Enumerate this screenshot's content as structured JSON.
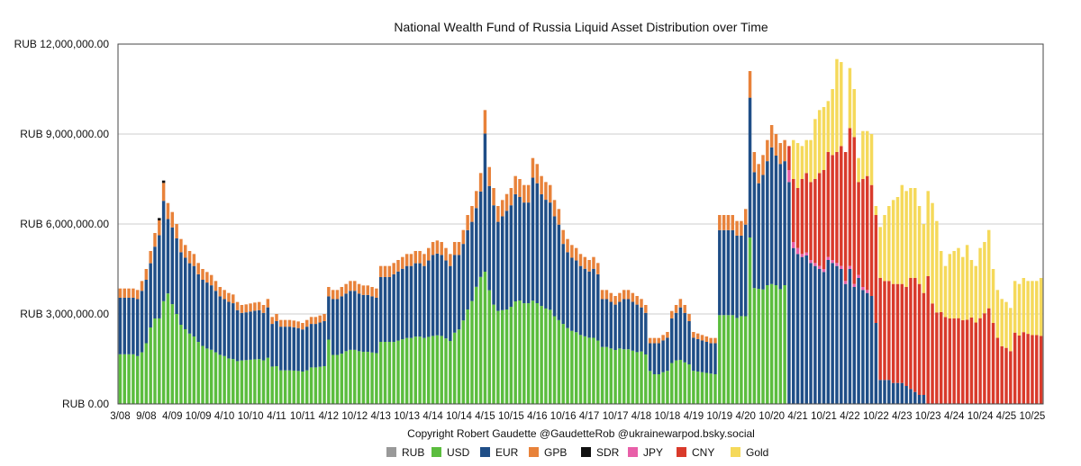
{
  "chart_data": {
    "type": "stacked-bar",
    "title": "National Wealth Fund of Russia Liquid Asset Distribution over Time",
    "credit": "Copyright Robert Gaudette @GaudetteRob @ukrainewarpod.bsky.social",
    "ylim": [
      0,
      12000000
    ],
    "yticks": [
      0,
      3000000,
      6000000,
      9000000,
      12000000
    ],
    "ytick_labels": [
      "RUB 0.00",
      "RUB 3,000,000.00",
      "RUB 6,000,000.00",
      "RUB 9,000,000.00",
      "RUB 12,000,000.00"
    ],
    "grid": true,
    "legend_position": "bottom",
    "x_tick_labels": [
      "3/08",
      "9/08",
      "4/09",
      "10/09",
      "4/10",
      "10/10",
      "4/11",
      "10/11",
      "4/12",
      "10/12",
      "4/13",
      "10/13",
      "4/14",
      "10/14",
      "4/15",
      "10/15",
      "4/16",
      "10/16",
      "4/17",
      "10/17",
      "4/18",
      "10/18",
      "4/19",
      "10/19",
      "4/20",
      "10/20",
      "4/21",
      "10/21",
      "4/22",
      "10/22",
      "4/23",
      "10/23",
      "4/24",
      "10/24",
      "4/25",
      "10/25"
    ],
    "series_meta": [
      {
        "name": "RUB",
        "color": "#999999"
      },
      {
        "name": "USD",
        "color": "#5bbd3e"
      },
      {
        "name": "EUR",
        "color": "#1f4e87"
      },
      {
        "name": "GPB",
        "color": "#e8823a"
      },
      {
        "name": "SDR",
        "color": "#111111"
      },
      {
        "name": "JPY",
        "color": "#e85fa8"
      },
      {
        "name": "CNY",
        "color": "#d93a2b"
      },
      {
        "name": "Gold",
        "color": "#f5d95a"
      }
    ],
    "months": 213,
    "phase1_totals": [
      3850000,
      3850000,
      3850000,
      3850000,
      3800000,
      4100000,
      4500000,
      5100000,
      5700000,
      6200000,
      7450000,
      6700000,
      6400000,
      6000000,
      5500000,
      5300000,
      5100000,
      5000000,
      4700000,
      4500000,
      4400000,
      4300000,
      4100000,
      3900000,
      3800000,
      3700000,
      3650000,
      3400000,
      3300000,
      3320000,
      3350000,
      3380000,
      3400000,
      3300000,
      3500000,
      2900000,
      3000000,
      2800000,
      2800000,
      2800000,
      2780000,
      2750000,
      2700000,
      2800000,
      2900000,
      2900000,
      2950000,
      3000000,
      3900000,
      3800000,
      3800000,
      3900000,
      4000000,
      4100000,
      4100000,
      4000000,
      3950000,
      3950000,
      3900000,
      3850000,
      4600000,
      4600000,
      4600000,
      4700000,
      4800000,
      4900000,
      5000000,
      5000000,
      5100000,
      5100000,
      5000000,
      5200000,
      5400000,
      5450000,
      5400000,
      5200000,
      5000000,
      5400000,
      5400000,
      5800000,
      6300000,
      6600000,
      7100000,
      7700000,
      9800000,
      7900000,
      7200000,
      6600000,
      6800000,
      7000000,
      7200000,
      7600000,
      7500000,
      7300000,
      7300000,
      8200000,
      8000000,
      7600000,
      7400000,
      7300000,
      6800000,
      6500000,
      5800000,
      5500000,
      5300000,
      5200000,
      5000000,
      4900000,
      4800000,
      4900000,
      4700000,
      3800000,
      3800000,
      3700000,
      3600000,
      3700000,
      3800000,
      3800000,
      3700000,
      3600000,
      3500000,
      3300000,
      2200000,
      2200000,
      2200000,
      2300000,
      2400000,
      3100000,
      3300000,
      3500000,
      3300000,
      3000000,
      2400000,
      2350000,
      2300000,
      2250000,
      2200000,
      2200000,
      6300000,
      6300000,
      6300000,
      6300000,
      6100000,
      6100000,
      6500000,
      11100000,
      8400000,
      8000000,
      8300000,
      8800000,
      9300000,
      9000000,
      8700000,
      8800000
    ],
    "usd_frac": [
      0.43,
      0.43,
      0.43,
      0.43,
      0.42,
      0.42,
      0.45,
      0.5,
      0.5,
      0.46,
      0.46,
      0.55,
      0.52,
      0.5,
      0.48,
      0.47,
      0.46,
      0.45,
      0.44,
      0.43,
      0.42,
      0.42,
      0.42,
      0.42,
      0.42,
      0.41,
      0.41,
      0.42,
      0.44,
      0.44,
      0.44,
      0.44,
      0.44,
      0.44,
      0.44,
      0.43,
      0.42,
      0.4,
      0.4,
      0.4,
      0.4,
      0.4,
      0.4,
      0.4,
      0.42,
      0.42,
      0.42,
      0.42,
      0.55,
      0.43,
      0.43,
      0.43,
      0.44,
      0.44,
      0.44,
      0.44,
      0.44,
      0.44,
      0.44,
      0.44,
      0.45,
      0.45,
      0.45,
      0.44,
      0.44,
      0.44,
      0.44,
      0.44,
      0.44,
      0.44,
      0.44,
      0.43,
      0.42,
      0.42,
      0.42,
      0.42,
      0.42,
      0.44,
      0.46,
      0.48,
      0.5,
      0.52,
      0.55,
      0.55,
      0.45,
      0.48,
      0.46,
      0.47,
      0.46,
      0.45,
      0.45,
      0.45,
      0.46,
      0.46,
      0.46,
      0.42,
      0.42,
      0.43,
      0.43,
      0.43,
      0.43,
      0.43,
      0.46,
      0.46,
      0.46,
      0.46,
      0.46,
      0.46,
      0.46,
      0.45,
      0.45,
      0.5,
      0.5,
      0.5,
      0.5,
      0.5,
      0.48,
      0.48,
      0.48,
      0.48,
      0.5,
      0.5,
      0.5,
      0.45,
      0.45,
      0.46,
      0.46,
      0.44,
      0.44,
      0.42,
      0.42,
      0.44,
      0.46,
      0.46,
      0.46,
      0.46,
      0.46,
      0.45,
      0.47,
      0.47,
      0.47,
      0.47,
      0.47,
      0.48,
      0.45,
      0.5,
      0.46,
      0.48,
      0.46,
      0.45,
      0.43,
      0.44,
      0.44,
      0.45
    ],
    "phase2_rows": [
      [
        0,
        0,
        7400000,
        0,
        0,
        400000,
        800000,
        0
      ],
      [
        0,
        0,
        5200000,
        0,
        0,
        200000,
        2100000,
        1300000
      ],
      [
        0,
        0,
        5000000,
        0,
        0,
        200000,
        2000000,
        1500000
      ],
      [
        0,
        0,
        4900000,
        0,
        0,
        100000,
        2500000,
        1100000
      ],
      [
        0,
        0,
        4950000,
        0,
        0,
        100000,
        2650000,
        1100000
      ],
      [
        0,
        0,
        4700000,
        0,
        0,
        100000,
        2600000,
        1400000
      ],
      [
        0,
        0,
        4600000,
        0,
        0,
        100000,
        2800000,
        2000000
      ],
      [
        0,
        0,
        4500000,
        0,
        0,
        100000,
        3100000,
        2100000
      ],
      [
        0,
        0,
        4400000,
        0,
        0,
        100000,
        3300000,
        2100000
      ],
      [
        0,
        0,
        4800000,
        0,
        0,
        100000,
        3500000,
        1700000
      ],
      [
        0,
        0,
        4700000,
        0,
        0,
        100000,
        3500000,
        2200000
      ],
      [
        0,
        0,
        4600000,
        0,
        0,
        100000,
        3700000,
        3100000
      ],
      [
        0,
        0,
        4500000,
        0,
        0,
        100000,
        4000000,
        2800000
      ],
      [
        0,
        0,
        4000000,
        0,
        0,
        100000,
        4300000,
        0
      ],
      [
        0,
        0,
        4500000,
        0,
        0,
        100000,
        4600000,
        2000000
      ],
      [
        0,
        0,
        3900000,
        0,
        0,
        100000,
        4900000,
        1600000
      ],
      [
        0,
        0,
        4200000,
        0,
        0,
        100000,
        3100000,
        800000
      ],
      [
        0,
        0,
        3800000,
        0,
        0,
        100000,
        3600000,
        1600000
      ],
      [
        0,
        0,
        3700000,
        0,
        0,
        100000,
        3800000,
        1500000
      ],
      [
        0,
        0,
        3600000,
        0,
        0,
        0,
        3700000,
        1700000
      ],
      [
        0,
        0,
        2700000,
        0,
        0,
        0,
        3600000,
        300000
      ],
      [
        0,
        0,
        800000,
        0,
        0,
        0,
        3400000,
        1700000
      ],
      [
        0,
        0,
        800000,
        0,
        0,
        0,
        3300000,
        2200000
      ],
      [
        0,
        0,
        800000,
        0,
        0,
        0,
        3300000,
        2500000
      ],
      [
        0,
        0,
        700000,
        0,
        0,
        0,
        3300000,
        2800000
      ],
      [
        0,
        0,
        700000,
        0,
        0,
        0,
        3300000,
        2900000
      ],
      [
        0,
        0,
        700000,
        0,
        0,
        0,
        3300000,
        3300000
      ],
      [
        0,
        0,
        600000,
        0,
        0,
        0,
        3300000,
        3200000
      ],
      [
        0,
        0,
        500000,
        0,
        0,
        0,
        3700000,
        3000000
      ],
      [
        0,
        0,
        400000,
        0,
        0,
        0,
        3800000,
        3000000
      ],
      [
        0,
        0,
        300000,
        0,
        0,
        0,
        3700000,
        2600000
      ],
      [
        0,
        0,
        300000,
        0,
        0,
        0,
        3400000,
        2300000
      ]
    ],
    "phase3_totals": [
      7100000,
      6700000,
      6100000,
      5100000,
      4600000,
      5000000,
      5100000,
      5200000,
      4900000,
      5300000,
      4800000,
      4600000,
      5200000,
      5400000,
      5800000,
      4500000,
      3800000,
      3500000,
      3400000,
      3200000,
      4100000,
      4000000,
      4200000,
      4100000,
      4100000,
      4100000,
      4200000,
      4000000
    ],
    "phase3_cny_frac": [
      0.6,
      0.5,
      0.5,
      0.6,
      0.63,
      0.57,
      0.56,
      0.55,
      0.57,
      0.53,
      0.6,
      0.59,
      0.55,
      0.56,
      0.55,
      0.6,
      0.58,
      0.55,
      0.55,
      0.55,
      0.58,
      0.57,
      0.57,
      0.57,
      0.56,
      0.56,
      0.54,
      0.54
    ]
  }
}
